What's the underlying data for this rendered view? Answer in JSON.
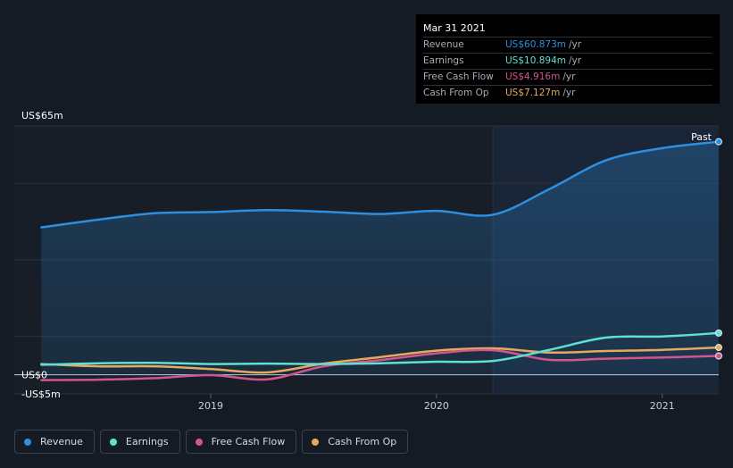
{
  "chart_data": {
    "type": "line",
    "y_axis_top_label": "US$65m",
    "y_axis_labels": [
      {
        "label": "US$0",
        "value": 0
      },
      {
        "label": "-US$5m",
        "value": -5
      }
    ],
    "x_ticks": [
      "2019",
      "2020",
      "2021"
    ],
    "past_label": "Past",
    "ylim": [
      -5,
      65
    ],
    "xlim": [
      2018.13,
      2021.25
    ],
    "forecast_shade_start": 2020.25,
    "series": [
      {
        "name": "Revenue",
        "color": "#2d8fe0",
        "area": true,
        "x": [
          2018.25,
          2018.5,
          2018.75,
          2019.0,
          2019.25,
          2019.5,
          2019.75,
          2020.0,
          2020.25,
          2020.5,
          2020.75,
          2021.0,
          2021.25
        ],
        "y": [
          38.5,
          40.5,
          42.2,
          42.5,
          43.0,
          42.6,
          42.0,
          42.8,
          41.8,
          48.5,
          56.0,
          59.2,
          60.873
        ]
      },
      {
        "name": "Earnings",
        "color": "#5fe0d2",
        "x": [
          2018.25,
          2018.5,
          2018.75,
          2019.0,
          2019.25,
          2019.5,
          2019.75,
          2020.0,
          2020.25,
          2020.5,
          2020.75,
          2021.0,
          2021.25
        ],
        "y": [
          2.6,
          3.0,
          3.1,
          2.8,
          2.9,
          2.8,
          3.0,
          3.4,
          3.6,
          6.5,
          9.7,
          10.0,
          10.894
        ]
      },
      {
        "name": "Free Cash Flow",
        "color": "#d2558e",
        "x": [
          2018.25,
          2018.5,
          2018.75,
          2019.0,
          2019.25,
          2019.5,
          2019.75,
          2020.0,
          2020.25,
          2020.5,
          2020.75,
          2021.0,
          2021.25
        ],
        "y": [
          -1.4,
          -1.3,
          -0.9,
          -0.1,
          -1.2,
          2.2,
          3.8,
          5.6,
          6.4,
          3.9,
          4.2,
          4.5,
          4.916
        ]
      },
      {
        "name": "Cash From Op",
        "color": "#e6aa5e",
        "x": [
          2018.25,
          2018.5,
          2018.75,
          2019.0,
          2019.25,
          2019.5,
          2019.75,
          2020.0,
          2020.25,
          2020.5,
          2020.75,
          2021.0,
          2021.25
        ],
        "y": [
          2.8,
          2.2,
          2.2,
          1.5,
          0.6,
          2.9,
          4.6,
          6.3,
          6.9,
          5.8,
          6.2,
          6.5,
          7.127
        ]
      }
    ]
  },
  "tooltip": {
    "date": "Mar 31 2021",
    "rows": [
      {
        "label": "Revenue",
        "value": "US$60.873m",
        "unit": "/yr",
        "color": "#2d8fe0"
      },
      {
        "label": "Earnings",
        "value": "US$10.894m",
        "unit": "/yr",
        "color": "#5fe0d2"
      },
      {
        "label": "Free Cash Flow",
        "value": "US$4.916m",
        "unit": "/yr",
        "color": "#d2558e"
      },
      {
        "label": "Cash From Op",
        "value": "US$7.127m",
        "unit": "/yr",
        "color": "#e6aa5e"
      }
    ]
  },
  "legend": [
    {
      "label": "Revenue",
      "color": "#2d8fe0"
    },
    {
      "label": "Earnings",
      "color": "#5fe0d2"
    },
    {
      "label": "Free Cash Flow",
      "color": "#d2558e"
    },
    {
      "label": "Cash From Op",
      "color": "#e6aa5e"
    }
  ]
}
